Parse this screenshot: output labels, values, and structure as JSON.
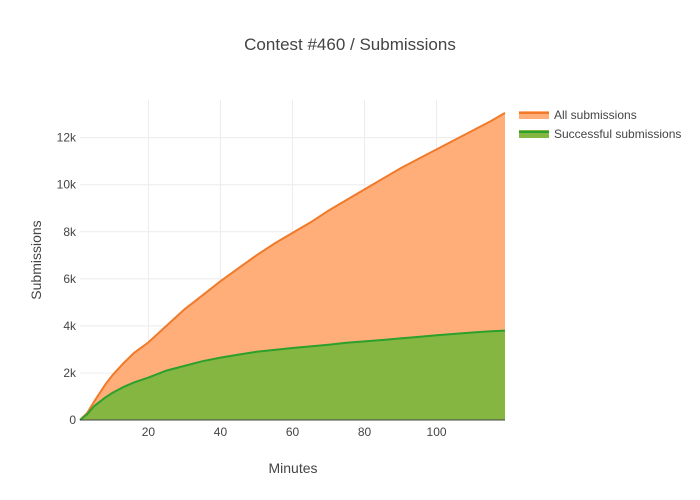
{
  "chart_data": {
    "type": "area",
    "title": "Contest #460 / Submissions",
    "xlabel": "Minutes",
    "ylabel": "Submissions",
    "xlim": [
      1,
      119
    ],
    "ylim": [
      0,
      13600
    ],
    "x_ticks": [
      20,
      40,
      60,
      80,
      100
    ],
    "x_tick_labels": [
      "20",
      "40",
      "60",
      "80",
      "100"
    ],
    "y_ticks": [
      0,
      2000,
      4000,
      6000,
      8000,
      10000,
      12000
    ],
    "y_tick_labels": [
      "0",
      "2k",
      "4k",
      "6k",
      "8k",
      "10k",
      "12k"
    ],
    "grid": true,
    "legend_position": "top-right",
    "series": [
      {
        "name": "All submissions",
        "line_color": "#f07a2a",
        "fill_color": "#ffae7a",
        "x": [
          1,
          3,
          5,
          8,
          10,
          13,
          16,
          20,
          25,
          30,
          35,
          40,
          45,
          50,
          55,
          60,
          65,
          70,
          75,
          80,
          85,
          90,
          95,
          100,
          105,
          110,
          115,
          119
        ],
        "y": [
          0,
          300,
          800,
          1500,
          1900,
          2400,
          2850,
          3300,
          4000,
          4700,
          5300,
          5900,
          6450,
          7000,
          7500,
          7950,
          8400,
          8900,
          9350,
          9800,
          10250,
          10700,
          11100,
          11500,
          11900,
          12300,
          12700,
          13050
        ]
      },
      {
        "name": "Successful submissions",
        "line_color": "#2ca02c",
        "fill_color": "#84b641",
        "x": [
          1,
          3,
          5,
          8,
          10,
          13,
          16,
          20,
          25,
          30,
          35,
          40,
          45,
          50,
          55,
          60,
          65,
          70,
          75,
          80,
          85,
          90,
          95,
          100,
          105,
          110,
          115,
          119
        ],
        "y": [
          0,
          250,
          600,
          950,
          1150,
          1400,
          1600,
          1800,
          2100,
          2300,
          2500,
          2650,
          2780,
          2900,
          2980,
          3060,
          3130,
          3200,
          3280,
          3340,
          3400,
          3470,
          3530,
          3600,
          3660,
          3720,
          3770,
          3800
        ]
      }
    ]
  }
}
